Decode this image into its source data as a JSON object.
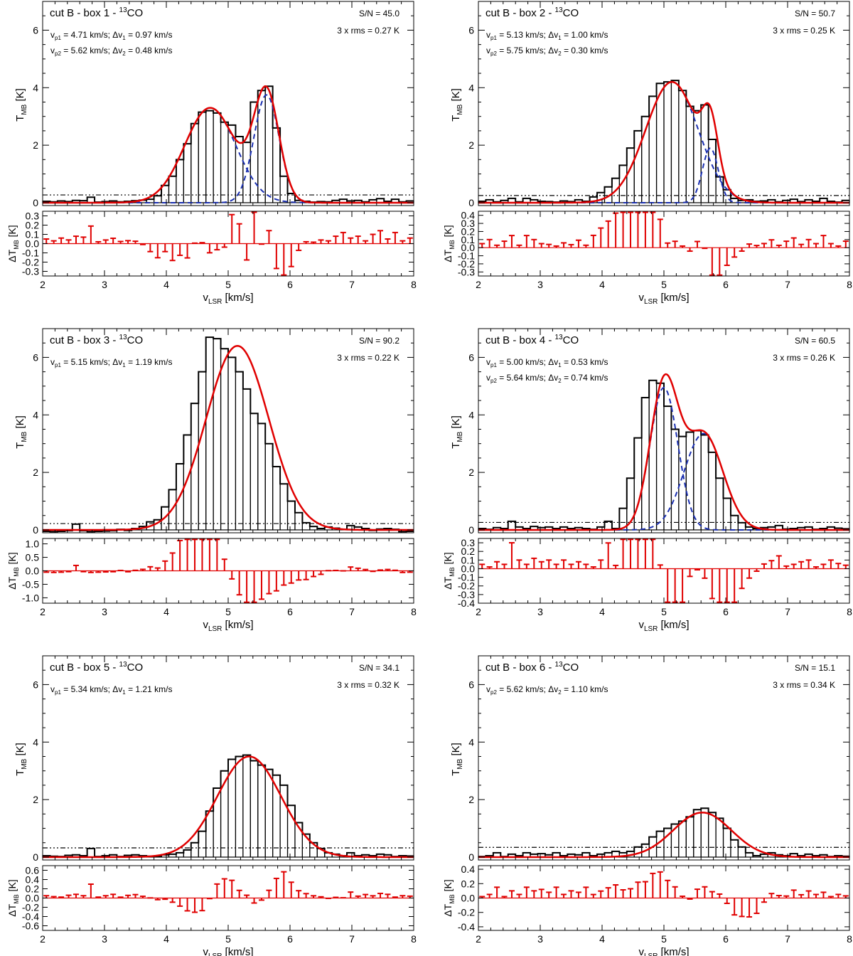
{
  "figure": {
    "xlabel": "v",
    "xlabel_sub": "LSR",
    "xlabel_unit": " [km/s]",
    "ylabel_main": "T",
    "ylabel_main_sub": "MB",
    "ylabel_main_unit": " [K]",
    "ylabel_res_prefix": "ΔT",
    "ylabel_res_sub": "MB",
    "ylabel_res_unit": " [K]",
    "sn_label": "S/N =",
    "rms_label": "3 x rms =",
    "title_prefix": "cut B - box ",
    "title_suffix": " - ",
    "title_sup": "13",
    "title_species": "CO"
  },
  "colors": {
    "spectrum": "#000000",
    "total_fit": "#e00000",
    "components": "#1a2fb0",
    "residuals": "#e00000",
    "threshold": "#000000"
  },
  "chart_data": [
    {
      "type": "bar",
      "box": "1",
      "sn": "45.0",
      "rms3": "0.27 K",
      "rms3_value": 0.27,
      "xlim": [
        2,
        8
      ],
      "ylim": [
        -0.1,
        7.0
      ],
      "yticks": [
        0,
        2,
        4,
        6
      ],
      "res_ylim": [
        -0.35,
        0.35
      ],
      "res_yticks": [
        "-0.3",
        "-0.2",
        "-0.1",
        "0.0",
        "0.1",
        "0.2",
        "0.3"
      ],
      "xticks": [
        2,
        3,
        4,
        5,
        6,
        7,
        8
      ],
      "components": [
        {
          "v_label": "p1",
          "dv_label": "1",
          "vp": "4.71 km/s",
          "dv": "0.97 km/s",
          "amp": 3.3,
          "center": 4.71,
          "fwhm": 0.97
        },
        {
          "v_label": "p2",
          "dv_label": "2",
          "vp": "5.62 km/s",
          "dv": "0.48 km/s",
          "amp": 3.75,
          "center": 5.62,
          "fwhm": 0.48
        }
      ],
      "spectrum_values": [
        0.05,
        0.03,
        0.06,
        0.04,
        0.08,
        0.07,
        0.19,
        0.02,
        0.04,
        0.06,
        0.03,
        0.05,
        0.07,
        0.09,
        0.12,
        0.24,
        0.6,
        0.92,
        1.5,
        2.05,
        2.75,
        3.15,
        3.2,
        3.12,
        2.8,
        2.7,
        2.3,
        2.1,
        3.5,
        3.9,
        4.05,
        2.6,
        0.92,
        0.32,
        0.08,
        0.05,
        0.02,
        0.04,
        0.03,
        0.08,
        0.12,
        0.06,
        0.08,
        0.03,
        0.1,
        0.14,
        0.05,
        0.12,
        0.03,
        0.06
      ]
    },
    {
      "type": "bar",
      "box": "2",
      "sn": "50.7",
      "rms3": "0.25 K",
      "rms3_value": 0.25,
      "xlim": [
        2,
        8
      ],
      "ylim": [
        -0.1,
        7.0
      ],
      "yticks": [
        0,
        2,
        4,
        6
      ],
      "res_ylim": [
        -0.35,
        0.45
      ],
      "res_yticks": [
        "-0.3",
        "-0.2",
        "-0.1",
        "0.0",
        "0.1",
        "0.2",
        "0.3",
        "0.4"
      ],
      "xticks": [
        2,
        3,
        4,
        5,
        6,
        7,
        8
      ],
      "components": [
        {
          "v_label": "p1",
          "dv_label": "1",
          "vp": "5.13 km/s",
          "dv": "1.00 km/s",
          "amp": 4.2,
          "center": 5.13,
          "fwhm": 1.0
        },
        {
          "v_label": "p2",
          "dv_label": "2",
          "vp": "5.75 km/s",
          "dv": "0.30 km/s",
          "amp": 1.9,
          "center": 5.75,
          "fwhm": 0.3
        }
      ],
      "spectrum_values": [
        0.05,
        0.1,
        0.03,
        0.08,
        0.15,
        0.03,
        0.15,
        0.1,
        0.05,
        0.04,
        0.02,
        0.06,
        0.04,
        0.1,
        0.05,
        0.2,
        0.35,
        0.55,
        0.85,
        1.3,
        1.9,
        2.5,
        3.0,
        3.7,
        4.15,
        4.2,
        4.25,
        3.9,
        3.35,
        3.2,
        3.4,
        2.2,
        0.9,
        0.45,
        0.15,
        0.08,
        0.1,
        0.05,
        0.06,
        0.1,
        0.03,
        0.08,
        0.12,
        0.04,
        0.1,
        0.05,
        0.15,
        0.05,
        0.02,
        0.08
      ]
    },
    {
      "type": "bar",
      "box": "3",
      "sn": "90.2",
      "rms3": "0.22 K",
      "rms3_value": 0.22,
      "xlim": [
        2,
        8
      ],
      "ylim": [
        -0.1,
        7.0
      ],
      "yticks": [
        0,
        2,
        4,
        6
      ],
      "res_ylim": [
        -1.2,
        1.2
      ],
      "res_yticks": [
        "-1.0",
        "-0.5",
        "0.0",
        "0.5",
        "1.0"
      ],
      "xticks": [
        2,
        3,
        4,
        5,
        6,
        7,
        8
      ],
      "components": [
        {
          "v_label": "p1",
          "dv_label": "1",
          "vp": "5.15 km/s",
          "dv": "1.19 km/s",
          "amp": 6.4,
          "center": 5.15,
          "fwhm": 1.19
        }
      ],
      "show_components": false,
      "spectrum_values": [
        -0.05,
        -0.06,
        -0.05,
        -0.03,
        0.2,
        -0.03,
        -0.06,
        -0.05,
        -0.04,
        -0.03,
        0.02,
        -0.02,
        0.05,
        0.12,
        0.28,
        0.35,
        0.8,
        1.4,
        2.3,
        3.3,
        4.4,
        5.5,
        6.7,
        6.65,
        6.3,
        6.0,
        5.5,
        4.9,
        4.05,
        3.7,
        3.0,
        2.2,
        1.6,
        1.0,
        0.6,
        0.25,
        0.12,
        0.05,
        0.1,
        0.06,
        0.02,
        0.15,
        0.1,
        0.05,
        -0.02,
        0.03,
        0.05,
        0.02,
        -0.06,
        -0.05
      ]
    },
    {
      "type": "bar",
      "box": "4",
      "sn": "60.5",
      "rms3": "0.26 K",
      "rms3_value": 0.26,
      "xlim": [
        2,
        8
      ],
      "ylim": [
        -0.1,
        7.0
      ],
      "yticks": [
        0,
        2,
        4,
        6
      ],
      "res_ylim": [
        -0.4,
        0.35
      ],
      "res_yticks": [
        "-0.4",
        "-0.3",
        "-0.2",
        "-0.1",
        "0.0",
        "0.1",
        "0.2",
        "0.3"
      ],
      "xticks": [
        2,
        3,
        4,
        5,
        6,
        7,
        8
      ],
      "components": [
        {
          "v_label": "p1",
          "dv_label": "1",
          "vp": "5.00 km/s",
          "dv": "0.53 km/s",
          "amp": 4.95,
          "center": 5.0,
          "fwhm": 0.53
        },
        {
          "v_label": "p2",
          "dv_label": "2",
          "vp": "5.64 km/s",
          "dv": "0.74 km/s",
          "amp": 3.35,
          "center": 5.64,
          "fwhm": 0.74
        }
      ],
      "spectrum_values": [
        0.05,
        0.02,
        0.08,
        0.05,
        0.3,
        0.1,
        0.05,
        0.12,
        0.08,
        0.1,
        0.05,
        0.1,
        0.05,
        0.08,
        0.05,
        0.02,
        0.1,
        0.3,
        0.05,
        0.75,
        1.8,
        3.2,
        4.6,
        5.2,
        5.1,
        4.3,
        3.5,
        3.25,
        3.4,
        3.45,
        3.3,
        2.7,
        1.8,
        1.1,
        0.5,
        0.25,
        0.1,
        0.05,
        0.08,
        0.1,
        0.15,
        0.03,
        0.05,
        0.08,
        0.1,
        0.02,
        0.05,
        0.1,
        0.06,
        0.04
      ]
    },
    {
      "type": "bar",
      "box": "5",
      "sn": "34.1",
      "rms3": "0.32 K",
      "rms3_value": 0.32,
      "xlim": [
        2,
        8
      ],
      "ylim": [
        -0.1,
        7.0
      ],
      "yticks": [
        0,
        2,
        4,
        6
      ],
      "res_ylim": [
        -0.7,
        0.7
      ],
      "res_yticks": [
        "-0.6",
        "-0.4",
        "-0.2",
        "0.0",
        "0.2",
        "0.4",
        "0.6"
      ],
      "xticks": [
        2,
        3,
        4,
        5,
        6,
        7,
        8
      ],
      "components": [
        {
          "v_label": "p1",
          "dv_label": "1",
          "vp": "5.34 km/s",
          "dv": "1.21 km/s",
          "amp": 3.5,
          "center": 5.34,
          "fwhm": 1.21
        }
      ],
      "show_components": false,
      "spectrum_values": [
        0.05,
        0.03,
        0.02,
        0.06,
        0.08,
        0.05,
        0.3,
        0.02,
        0.05,
        0.08,
        0.02,
        0.06,
        0.08,
        0.05,
        0.03,
        0.02,
        0.08,
        0.1,
        0.15,
        0.25,
        0.5,
        0.9,
        1.6,
        2.4,
        3.0,
        3.4,
        3.5,
        3.55,
        3.35,
        3.2,
        3.05,
        2.85,
        2.5,
        1.8,
        1.2,
        0.8,
        0.5,
        0.3,
        0.15,
        0.1,
        0.05,
        0.15,
        0.05,
        0.08,
        0.05,
        0.1,
        0.08,
        0.02,
        0.05,
        0.04
      ]
    },
    {
      "type": "bar",
      "box": "6",
      "sn": "15.1",
      "rms3": "0.34 K",
      "rms3_value": 0.34,
      "xlim": [
        2,
        8
      ],
      "ylim": [
        -0.1,
        7.0
      ],
      "yticks": [
        0,
        2,
        4,
        6
      ],
      "res_ylim": [
        -0.45,
        0.45
      ],
      "res_yticks": [
        "-0.4",
        "-0.2",
        "0.0",
        "0.2",
        "0.4"
      ],
      "xticks": [
        2,
        3,
        4,
        5,
        6,
        7,
        8
      ],
      "components": [
        {
          "v_label": "p2",
          "dv_label": "2",
          "vp": "5.62 km/s",
          "dv": "1.10 km/s",
          "amp": 1.55,
          "center": 5.62,
          "fwhm": 1.1
        }
      ],
      "show_components": false,
      "spectrum_values": [
        0.02,
        0.05,
        0.15,
        0.02,
        0.1,
        0.05,
        0.15,
        0.1,
        0.12,
        0.08,
        0.15,
        0.05,
        0.1,
        0.08,
        0.15,
        0.05,
        0.1,
        0.15,
        0.2,
        0.15,
        0.2,
        0.35,
        0.45,
        0.7,
        0.9,
        1.0,
        1.15,
        1.25,
        1.4,
        1.65,
        1.7,
        1.55,
        1.35,
        1.0,
        0.6,
        0.35,
        0.15,
        0.05,
        0.1,
        0.15,
        0.08,
        0.05,
        0.12,
        0.05,
        0.1,
        0.05,
        0.08,
        0.02,
        0.05,
        0.03
      ]
    }
  ]
}
